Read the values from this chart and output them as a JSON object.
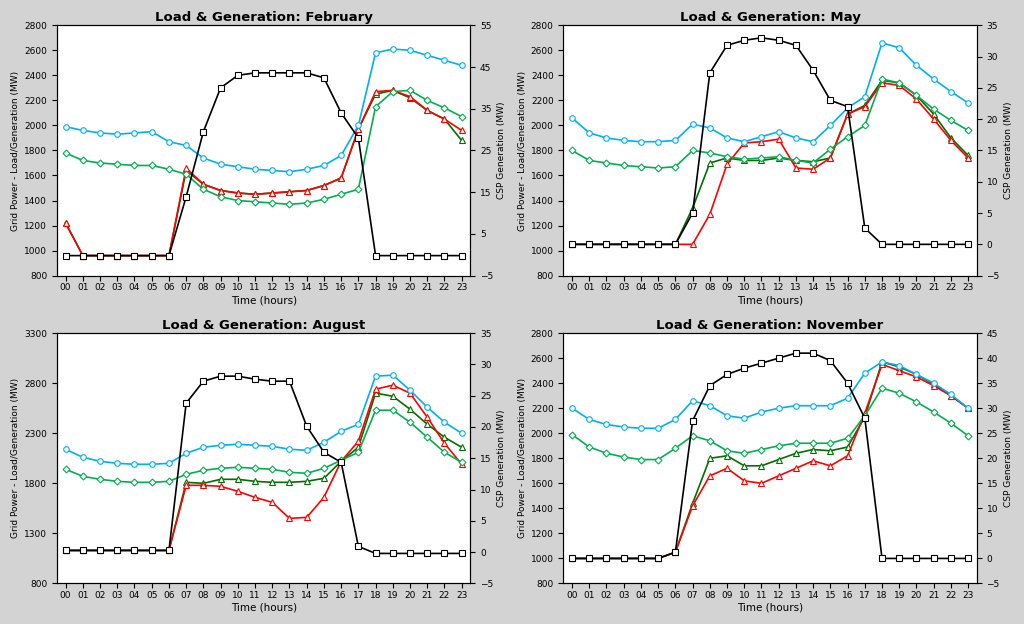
{
  "hours": [
    0,
    1,
    2,
    3,
    4,
    5,
    6,
    7,
    8,
    9,
    10,
    11,
    12,
    13,
    14,
    15,
    16,
    17,
    18,
    19,
    20,
    21,
    22,
    23
  ],
  "panels": [
    {
      "title": "Load & Generation: February",
      "ylim_left": [
        800,
        2800
      ],
      "ylim_right": [
        -5,
        55
      ],
      "yticks_left": [
        800,
        1000,
        1200,
        1400,
        1600,
        1800,
        2000,
        2200,
        2400,
        2600,
        2800
      ],
      "yticks_right": [
        -5,
        5,
        15,
        25,
        35,
        45,
        55
      ],
      "black_square": [
        960,
        960,
        960,
        960,
        960,
        960,
        960,
        1430,
        1950,
        2300,
        2400,
        2420,
        2420,
        2420,
        2420,
        2380,
        2100,
        1900,
        960,
        960,
        960,
        960,
        960,
        960
      ],
      "cyan_circle": [
        1990,
        1960,
        1940,
        1930,
        1940,
        1950,
        1870,
        1840,
        1740,
        1690,
        1670,
        1650,
        1640,
        1630,
        1650,
        1680,
        1760,
        2000,
        2580,
        2610,
        2600,
        2560,
        2520,
        2480
      ],
      "green_diamond": [
        1780,
        1720,
        1700,
        1690,
        1680,
        1680,
        1650,
        1610,
        1490,
        1430,
        1400,
        1390,
        1380,
        1370,
        1380,
        1410,
        1450,
        1490,
        2150,
        2270,
        2280,
        2200,
        2140,
        2070
      ],
      "red_line": [
        1220,
        960,
        960,
        960,
        960,
        960,
        960,
        1660,
        1530,
        1480,
        1460,
        1450,
        1460,
        1470,
        1480,
        1520,
        1580,
        1970,
        2270,
        2280,
        2230,
        2120,
        2050,
        1960
      ],
      "green_triangle": [
        1220,
        960,
        960,
        960,
        960,
        960,
        960,
        1640,
        1530,
        1480,
        1460,
        1450,
        1460,
        1470,
        1480,
        1520,
        1580,
        1970,
        2250,
        2280,
        2220,
        2120,
        2050,
        1880
      ]
    },
    {
      "title": "Load & Generation: May",
      "ylim_left": [
        800,
        2800
      ],
      "ylim_right": [
        -5,
        35
      ],
      "yticks_left": [
        800,
        1000,
        1200,
        1400,
        1600,
        1800,
        2000,
        2200,
        2400,
        2600,
        2800
      ],
      "yticks_right": [
        -5,
        0,
        5,
        10,
        15,
        20,
        25,
        30,
        35
      ],
      "black_square": [
        1050,
        1050,
        1050,
        1050,
        1050,
        1050,
        1050,
        1300,
        2420,
        2640,
        2680,
        2700,
        2680,
        2640,
        2440,
        2200,
        2150,
        1180,
        1050,
        1050,
        1050,
        1050,
        1050,
        1050
      ],
      "cyan_circle": [
        2060,
        1940,
        1900,
        1880,
        1870,
        1870,
        1880,
        2010,
        1980,
        1900,
        1870,
        1910,
        1950,
        1900,
        1870,
        2000,
        2140,
        2230,
        2660,
        2620,
        2480,
        2370,
        2270,
        2180
      ],
      "green_diamond": [
        1800,
        1720,
        1700,
        1680,
        1670,
        1660,
        1670,
        1800,
        1780,
        1750,
        1730,
        1740,
        1750,
        1720,
        1700,
        1810,
        1910,
        2000,
        2370,
        2340,
        2240,
        2130,
        2040,
        1960
      ],
      "red_line": [
        1050,
        1050,
        1050,
        1050,
        1050,
        1050,
        1050,
        1050,
        1290,
        1690,
        1860,
        1870,
        1890,
        1660,
        1650,
        1740,
        2090,
        2150,
        2340,
        2320,
        2210,
        2050,
        1880,
        1740
      ],
      "green_triangle": [
        1050,
        1050,
        1050,
        1050,
        1050,
        1050,
        1050,
        1340,
        1700,
        1740,
        1720,
        1720,
        1740,
        1720,
        1710,
        1740,
        2090,
        2160,
        2360,
        2340,
        2240,
        2090,
        1900,
        1760
      ]
    },
    {
      "title": "Load & Generation: August",
      "ylim_left": [
        800,
        3300
      ],
      "ylim_right": [
        -5,
        35
      ],
      "yticks_left": [
        800,
        1300,
        1800,
        2300,
        2800,
        3300
      ],
      "yticks_right": [
        -5,
        0,
        5,
        10,
        15,
        20,
        25,
        30,
        35
      ],
      "black_square": [
        1130,
        1130,
        1130,
        1130,
        1130,
        1130,
        1130,
        2600,
        2820,
        2870,
        2870,
        2840,
        2820,
        2820,
        2370,
        2110,
        2010,
        1170,
        1100,
        1100,
        1100,
        1100,
        1100,
        1100
      ],
      "cyan_circle": [
        2140,
        2060,
        2020,
        2000,
        1990,
        1990,
        2000,
        2100,
        2160,
        2180,
        2190,
        2180,
        2170,
        2140,
        2130,
        2210,
        2320,
        2390,
        2870,
        2880,
        2730,
        2560,
        2410,
        2300
      ],
      "green_diamond": [
        1940,
        1870,
        1840,
        1820,
        1810,
        1810,
        1820,
        1890,
        1930,
        1950,
        1960,
        1950,
        1940,
        1910,
        1900,
        1950,
        2030,
        2110,
        2530,
        2530,
        2410,
        2260,
        2110,
        2010
      ],
      "red_line": [
        1130,
        1130,
        1130,
        1130,
        1130,
        1130,
        1130,
        1780,
        1780,
        1770,
        1720,
        1660,
        1610,
        1450,
        1460,
        1660,
        2020,
        2220,
        2740,
        2780,
        2700,
        2460,
        2200,
        1990
      ],
      "green_triangle": [
        1130,
        1130,
        1130,
        1130,
        1130,
        1130,
        1130,
        1810,
        1800,
        1840,
        1840,
        1820,
        1810,
        1810,
        1820,
        1850,
        2020,
        2160,
        2700,
        2670,
        2540,
        2390,
        2260,
        2160
      ]
    },
    {
      "title": "Load & Generation: November",
      "ylim_left": [
        800,
        2800
      ],
      "ylim_right": [
        -5,
        45
      ],
      "yticks_left": [
        800,
        1000,
        1200,
        1400,
        1600,
        1800,
        2000,
        2200,
        2400,
        2600,
        2800
      ],
      "yticks_right": [
        -5,
        0,
        5,
        10,
        15,
        20,
        25,
        30,
        35,
        40,
        45
      ],
      "black_square": [
        1000,
        1000,
        1000,
        1000,
        1000,
        1000,
        1050,
        2100,
        2380,
        2470,
        2520,
        2560,
        2600,
        2640,
        2640,
        2580,
        2400,
        2120,
        1000,
        1000,
        1000,
        1000,
        1000,
        1000
      ],
      "cyan_circle": [
        2200,
        2110,
        2070,
        2050,
        2040,
        2040,
        2110,
        2260,
        2220,
        2140,
        2120,
        2170,
        2200,
        2220,
        2220,
        2220,
        2280,
        2480,
        2570,
        2540,
        2470,
        2400,
        2310,
        2200
      ],
      "green_diamond": [
        1990,
        1890,
        1840,
        1810,
        1790,
        1790,
        1880,
        1980,
        1940,
        1860,
        1840,
        1870,
        1900,
        1920,
        1920,
        1920,
        1960,
        2140,
        2360,
        2320,
        2250,
        2170,
        2080,
        1980
      ],
      "red_line": [
        1000,
        1000,
        1000,
        1000,
        1000,
        1000,
        1050,
        1420,
        1660,
        1720,
        1620,
        1600,
        1660,
        1720,
        1780,
        1740,
        1820,
        2160,
        2550,
        2500,
        2450,
        2380,
        2300,
        2200
      ],
      "green_triangle": [
        1000,
        1000,
        1000,
        1000,
        1000,
        1000,
        1050,
        1440,
        1800,
        1820,
        1740,
        1740,
        1790,
        1840,
        1870,
        1860,
        1890,
        2130,
        2570,
        2530,
        2470,
        2390,
        2300,
        2200
      ]
    }
  ],
  "colors": {
    "black": "#000000",
    "cyan": "#00B0F0",
    "green": "#00B050",
    "red": "#FF0000",
    "dark_green": "#007000"
  },
  "ylabel_left": "Grid Power - Load/Generation (MW)",
  "ylabel_right": "CSP Generation (MW)",
  "xlabel": "Time (hours)",
  "background": "#ffffff",
  "fig_background": "#d3d3d3"
}
